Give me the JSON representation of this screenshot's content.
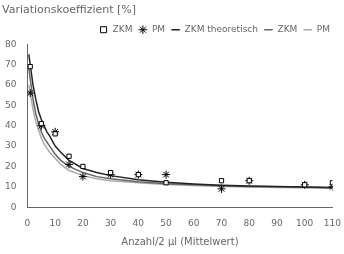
{
  "chart_data": {
    "type": "scatter",
    "title": "Variationskoeffizient [%]",
    "x_label": "Anzahl/2 μl (Mittelwert)",
    "xlim": [
      0,
      110
    ],
    "ylim": [
      0,
      80
    ],
    "xticks": [
      0,
      10,
      20,
      30,
      40,
      50,
      60,
      70,
      80,
      90,
      100,
      110
    ],
    "yticks": [
      0,
      10,
      20,
      30,
      40,
      50,
      60,
      70,
      80
    ],
    "grid": false,
    "legend": "upper right",
    "series": [
      {
        "name": "ZKM",
        "type": "scatter",
        "marker": "square",
        "color": "#000000",
        "x": [
          1,
          5,
          10,
          15,
          20,
          30,
          40,
          50,
          70,
          80,
          100,
          110
        ],
        "values": [
          69,
          41,
          36,
          25,
          20,
          17,
          16,
          12,
          13,
          13,
          11,
          12
        ]
      },
      {
        "name": "PM",
        "type": "scatter",
        "marker": "star",
        "color": "#000000",
        "x": [
          1,
          5,
          10,
          15,
          20,
          30,
          40,
          50,
          70,
          80,
          100,
          110
        ],
        "values": [
          56,
          40,
          37,
          21,
          15,
          16,
          16,
          16,
          9,
          13,
          11,
          10
        ]
      },
      {
        "name": "ZKM theoretisch",
        "type": "line",
        "line_style": "solid",
        "color": "#222222",
        "x": [
          0.5,
          1,
          1.5,
          2,
          3,
          4,
          5,
          6,
          7,
          8,
          10,
          12,
          15,
          20,
          25,
          30,
          40,
          50,
          60,
          70,
          80,
          90,
          100,
          110
        ],
        "values": [
          75,
          70,
          65,
          60,
          53,
          47,
          43,
          40,
          37,
          35,
          30,
          27,
          23,
          19,
          17,
          15.5,
          13.5,
          12.2,
          11.4,
          10.8,
          10.4,
          10.1,
          9.9,
          9.7
        ]
      },
      {
        "name": "ZKM",
        "type": "line",
        "line_style": "solid",
        "color": "#666666",
        "x": [
          0.5,
          1,
          1.5,
          2,
          3,
          4,
          5,
          6,
          7,
          8,
          10,
          12,
          15,
          20,
          25,
          30,
          40,
          50,
          60,
          70,
          80,
          90,
          100,
          110
        ],
        "values": [
          68,
          63,
          58,
          53,
          46,
          41,
          37,
          34,
          32,
          30,
          26,
          23,
          20,
          17,
          15,
          14,
          12.5,
          11.5,
          11.0,
          10.5,
          10.2,
          10.0,
          9.8,
          9.6
        ]
      },
      {
        "name": "PM",
        "type": "line",
        "line_style": "solid",
        "color": "#aaaaaa",
        "x": [
          0.5,
          1,
          1.5,
          2,
          3,
          4,
          5,
          6,
          7,
          8,
          10,
          12,
          15,
          20,
          25,
          30,
          40,
          50,
          60,
          70,
          80,
          90,
          100,
          110
        ],
        "values": [
          60,
          56,
          52,
          48,
          42,
          38,
          34,
          31,
          29,
          27,
          24,
          21,
          18,
          15.5,
          14,
          13,
          12.0,
          11.2,
          10.7,
          10.2,
          9.9,
          9.7,
          9.5,
          9.3
        ]
      }
    ]
  }
}
